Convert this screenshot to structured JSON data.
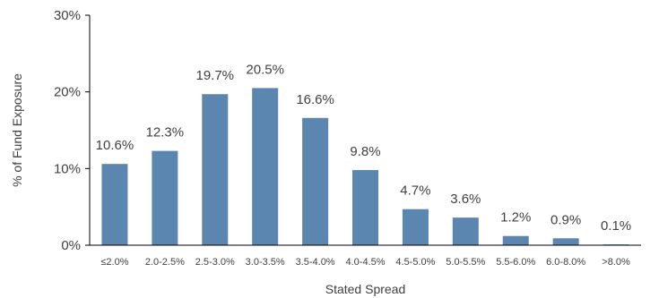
{
  "chart_data": {
    "type": "bar",
    "categories": [
      "≤2.0%",
      "2.0-2.5%",
      "2.5-3.0%",
      "3.0-3.5%",
      "3.5-4.0%",
      "4.0-4.5%",
      "4.5-5.0%",
      "5.0-5.5%",
      "5.5-6.0%",
      "6.0-8.0%",
      ">8.0%"
    ],
    "values": [
      10.6,
      12.3,
      19.7,
      20.5,
      16.6,
      9.8,
      4.7,
      3.6,
      1.2,
      0.9,
      0.1
    ],
    "data_labels": [
      "10.6%",
      "12.3%",
      "19.7%",
      "20.5%",
      "16.6%",
      "9.8%",
      "4.7%",
      "3.6%",
      "1.2%",
      "0.9%",
      "0.1%"
    ],
    "title": "",
    "xlabel": "Stated Spread",
    "ylabel": "% of Fund Exposure",
    "ylim": [
      0,
      30
    ],
    "yticks": [
      0,
      10,
      20,
      30
    ],
    "ytick_labels": [
      "0%",
      "10%",
      "20%",
      "30%"
    ],
    "grid": false,
    "legend": "none",
    "bar_color": "#5b86b0",
    "axis_color": "#000000",
    "text_color": "#404040"
  }
}
